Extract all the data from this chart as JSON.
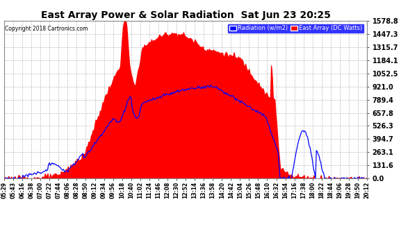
{
  "title": "East Array Power & Solar Radiation  Sat Jun 23 20:25",
  "copyright": "Copyright 2018 Cartronics.com",
  "legend_radiation": "Radiation (w/m2)",
  "legend_east": "East Array (DC Watts)",
  "radiation_color": "#0000ff",
  "east_color": "#ff0000",
  "background_color": "#ffffff",
  "plot_bg_color": "#ffffff",
  "grid_color": "#aaaaaa",
  "title_color": "#000000",
  "ymin": 0.0,
  "ymax": 1578.8,
  "yticks": [
    0.0,
    131.6,
    263.1,
    394.7,
    526.3,
    657.8,
    789.4,
    921.0,
    1052.5,
    1184.1,
    1315.7,
    1447.3,
    1578.8
  ],
  "xtick_labels": [
    "05:29",
    "05:43",
    "06:16",
    "06:38",
    "07:00",
    "07:22",
    "07:44",
    "08:06",
    "08:28",
    "08:50",
    "09:12",
    "09:34",
    "09:56",
    "10:18",
    "10:40",
    "11:02",
    "11:24",
    "11:46",
    "12:08",
    "12:30",
    "12:52",
    "13:14",
    "13:36",
    "13:58",
    "14:20",
    "14:42",
    "15:04",
    "15:26",
    "15:48",
    "16:10",
    "16:32",
    "16:54",
    "17:16",
    "17:38",
    "18:00",
    "18:22",
    "18:44",
    "19:06",
    "19:28",
    "19:50",
    "20:12"
  ],
  "n_points": 410
}
